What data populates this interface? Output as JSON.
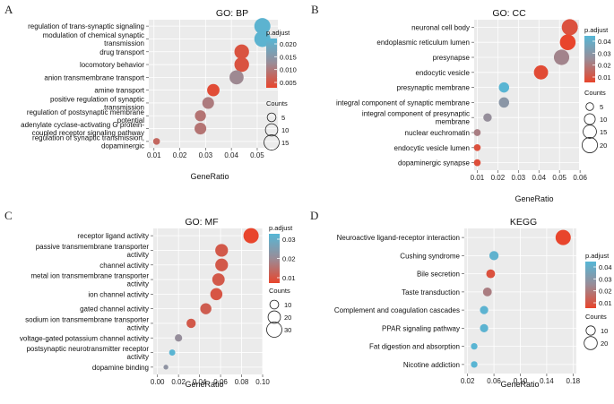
{
  "chart_data": [
    {
      "type": "scatter",
      "panel_label": "A",
      "title": "GO: BP",
      "xlabel": "GeneRatio",
      "xlim": [
        0.008,
        0.058
      ],
      "x_ticks": [
        "0.01",
        "0.02",
        "0.03",
        "0.04",
        "0.05"
      ],
      "categories": [
        [
          "regulation of trans-synaptic signaling"
        ],
        [
          "modulation of chemical synaptic",
          "transmission"
        ],
        [
          "drug transport"
        ],
        [
          "locomotory behavior"
        ],
        [
          "anion transmembrane transport"
        ],
        [
          "amine transport"
        ],
        [
          "positive regulation of synaptic",
          "transmission"
        ],
        [
          "regulation of postsynaptic membrane",
          "potential"
        ],
        [
          "adenylate cyclase-activating G protein-",
          "coupled receptor signaling pathway"
        ],
        [
          "regulation of synaptic transmission,",
          "dopaminergic"
        ]
      ],
      "points": [
        {
          "x": 0.052,
          "count": 17,
          "p_adjust": 0.021
        },
        {
          "x": 0.052,
          "count": 17,
          "p_adjust": 0.021
        },
        {
          "x": 0.044,
          "count": 14,
          "p_adjust": 0.003
        },
        {
          "x": 0.044,
          "count": 14,
          "p_adjust": 0.003
        },
        {
          "x": 0.042,
          "count": 13,
          "p_adjust": 0.011
        },
        {
          "x": 0.033,
          "count": 10,
          "p_adjust": 0.002
        },
        {
          "x": 0.031,
          "count": 9,
          "p_adjust": 0.009
        },
        {
          "x": 0.028,
          "count": 8,
          "p_adjust": 0.008
        },
        {
          "x": 0.028,
          "count": 9,
          "p_adjust": 0.008
        },
        {
          "x": 0.011,
          "count": 3,
          "p_adjust": 0.006
        }
      ],
      "legend": {
        "color_title": "p.adjust",
        "color_ticks": [
          "0.020",
          "0.015",
          "0.010",
          "0.005"
        ],
        "color_range": [
          0.001,
          0.022
        ],
        "size_title": "Counts",
        "size_ticks": [
          "5",
          "10",
          "15"
        ],
        "size_values": [
          5,
          10,
          15
        ]
      }
    },
    {
      "type": "scatter",
      "panel_label": "B",
      "title": "GO: CC",
      "xlabel": "GeneRatio",
      "xlim": [
        0.0085,
        0.0595
      ],
      "x_ticks": [
        "0.01",
        "0.02",
        "0.03",
        "0.04",
        "0.05",
        "0.06"
      ],
      "categories": [
        [
          "neuronal cell body"
        ],
        [
          "endoplasmic reticulum lumen"
        ],
        [
          "presynapse"
        ],
        [
          "endocytic vesicle"
        ],
        [
          "presynaptic membrane"
        ],
        [
          "integral component of synaptic membrane"
        ],
        [
          "integral component of presynaptic",
          "membrane"
        ],
        [
          "nuclear euchromatin"
        ],
        [
          "endocytic vesicle lumen"
        ],
        [
          "dopaminergic synapse"
        ]
      ],
      "points": [
        {
          "x": 0.055,
          "count": 22,
          "p_adjust": 0.005
        },
        {
          "x": 0.054,
          "count": 21,
          "p_adjust": 0.001
        },
        {
          "x": 0.051,
          "count": 20,
          "p_adjust": 0.022
        },
        {
          "x": 0.041,
          "count": 17,
          "p_adjust": 0.003
        },
        {
          "x": 0.023,
          "count": 9,
          "p_adjust": 0.047
        },
        {
          "x": 0.023,
          "count": 9,
          "p_adjust": 0.03
        },
        {
          "x": 0.015,
          "count": 6,
          "p_adjust": 0.026
        },
        {
          "x": 0.01,
          "count": 4,
          "p_adjust": 0.02
        },
        {
          "x": 0.01,
          "count": 4,
          "p_adjust": 0.005
        },
        {
          "x": 0.01,
          "count": 4,
          "p_adjust": 0.004
        }
      ],
      "legend": {
        "color_title": "p.adjust",
        "color_ticks": [
          "0.04",
          "0.03",
          "0.02",
          "0.01"
        ],
        "color_range": [
          0.001,
          0.048
        ],
        "size_title": "Counts",
        "size_ticks": [
          "5",
          "10",
          "15",
          "20"
        ],
        "size_values": [
          5,
          10,
          15,
          20
        ]
      }
    },
    {
      "type": "scatter",
      "panel_label": "C",
      "title": "GO: MF",
      "xlabel": "GeneRatio",
      "xlim": [
        -0.004,
        0.1
      ],
      "x_ticks": [
        "0.00",
        "0.02",
        "0.04",
        "0.06",
        "0.08",
        "0.10"
      ],
      "categories": [
        [
          "receptor ligand activity"
        ],
        [
          "passive transmembrane transporter",
          "activity"
        ],
        [
          "channel activity"
        ],
        [
          "metal ion transmembrane transporter",
          "activity"
        ],
        [
          "ion channel activity"
        ],
        [
          "gated channel activity"
        ],
        [
          "sodium ion transmembrane transporter",
          "activity"
        ],
        [
          "voltage-gated potassium channel activity"
        ],
        [
          "postsynaptic neurotransmitter receptor",
          "activity"
        ],
        [
          "dopamine binding"
        ]
      ],
      "points": [
        {
          "x": 0.089,
          "count": 30,
          "p_adjust": 0.001
        },
        {
          "x": 0.061,
          "count": 21,
          "p_adjust": 0.006
        },
        {
          "x": 0.061,
          "count": 21,
          "p_adjust": 0.006
        },
        {
          "x": 0.058,
          "count": 20,
          "p_adjust": 0.006
        },
        {
          "x": 0.056,
          "count": 19,
          "p_adjust": 0.005
        },
        {
          "x": 0.046,
          "count": 16,
          "p_adjust": 0.007
        },
        {
          "x": 0.032,
          "count": 11,
          "p_adjust": 0.006
        },
        {
          "x": 0.02,
          "count": 7,
          "p_adjust": 0.02
        },
        {
          "x": 0.014,
          "count": 5,
          "p_adjust": 0.036
        },
        {
          "x": 0.008,
          "count": 3,
          "p_adjust": 0.022
        }
      ],
      "legend": {
        "color_title": "p.adjust",
        "color_ticks": [
          "0.03",
          "0.02",
          "0.01"
        ],
        "color_range": [
          0.001,
          0.037
        ],
        "size_title": "Counts",
        "size_ticks": [
          "10",
          "20",
          "30"
        ],
        "size_values": [
          10,
          20,
          30
        ]
      }
    },
    {
      "type": "scatter",
      "panel_label": "D",
      "title": "KEGG",
      "xlabel": "GeneRatio",
      "xlim": [
        0.015,
        0.185
      ],
      "x_ticks": [
        "0.02",
        "0.06",
        "0.10",
        "0.14",
        "0.18"
      ],
      "categories": [
        [
          "Neuroactive ligand-receptor interaction"
        ],
        [
          "Cushing syndrome"
        ],
        [
          "Bile secretion"
        ],
        [
          "Taste transduction"
        ],
        [
          "Complement and coagulation cascades"
        ],
        [
          "PPAR signaling pathway"
        ],
        [
          "Fat digestion and absorption"
        ],
        [
          "Nicotine addiction"
        ]
      ],
      "points": [
        {
          "x": 0.165,
          "count": 27,
          "p_adjust": 0.001
        },
        {
          "x": 0.06,
          "count": 10,
          "p_adjust": 0.046
        },
        {
          "x": 0.055,
          "count": 9,
          "p_adjust": 0.005
        },
        {
          "x": 0.05,
          "count": 9,
          "p_adjust": 0.02
        },
        {
          "x": 0.045,
          "count": 8,
          "p_adjust": 0.047
        },
        {
          "x": 0.045,
          "count": 8,
          "p_adjust": 0.047
        },
        {
          "x": 0.03,
          "count": 5,
          "p_adjust": 0.048
        },
        {
          "x": 0.03,
          "count": 5,
          "p_adjust": 0.048
        }
      ],
      "legend": {
        "color_title": "p.adjust",
        "color_ticks": [
          "0.04",
          "0.03",
          "0.02",
          "0.01"
        ],
        "color_range": [
          0.001,
          0.049
        ],
        "size_title": "Counts",
        "size_ticks": [
          "10",
          "20"
        ],
        "size_values": [
          10,
          20
        ]
      }
    }
  ],
  "colors": {
    "panel_background": "#ebebeb",
    "gridline": "#ffffff",
    "low_p_adjust": "#e8452c",
    "high_p_adjust": "#56b7d6",
    "mid_p_adjust": "#9a8c97"
  }
}
